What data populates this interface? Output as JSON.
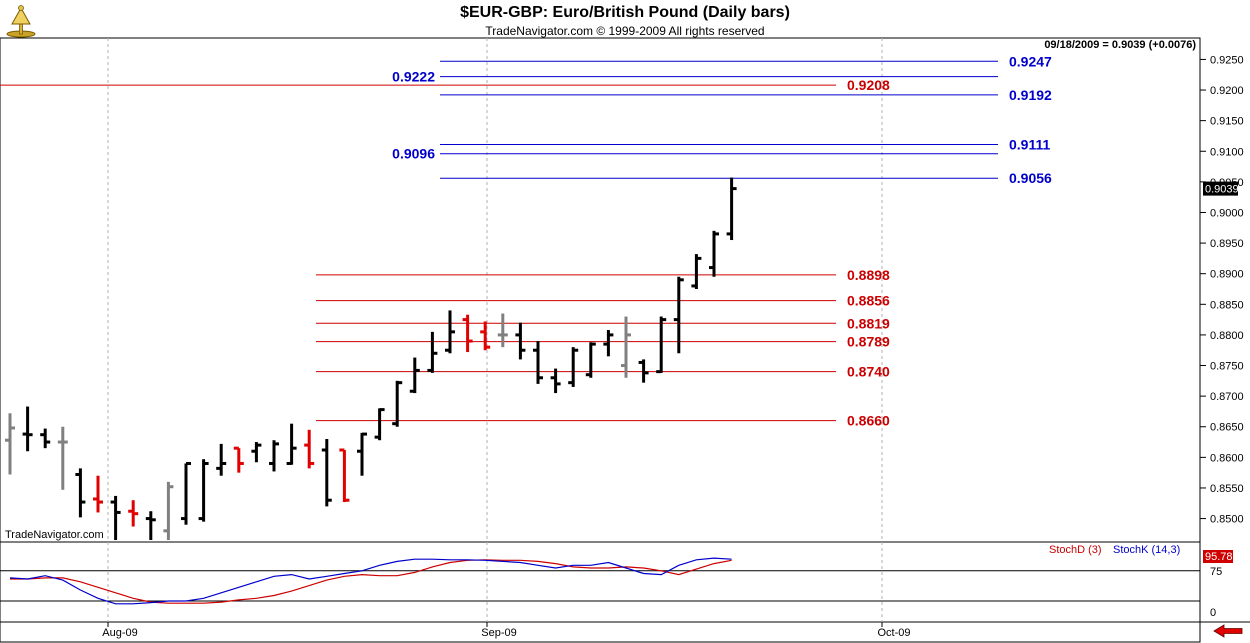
{
  "header": {
    "title": "$EUR-GBP:  Euro/British Pound  (Daily bars)",
    "subtitle": "TradeNavigator.com © 1999-2009 All rights reserved"
  },
  "chart_data": {
    "type": "bar",
    "title": "$EUR-GBP:  Euro/British Pound  (Daily bars)",
    "readout": "09/18/2009 = 0.9039 (+0.0076)",
    "watermark": "TradeNavigator.com",
    "last_price_label": "0.9039",
    "price_axis": {
      "range": [
        0.8465,
        0.9285
      ],
      "ticks": [
        "0.9250",
        "0.9200",
        "0.9150",
        "0.9100",
        "0.9050",
        "0.9000",
        "0.8950",
        "0.8900",
        "0.8850",
        "0.8800",
        "0.8750",
        "0.8700",
        "0.8650",
        "0.8600",
        "0.8550",
        "0.8500"
      ]
    },
    "date_axis": {
      "labels": [
        "Aug-09",
        "Sep-09",
        "Oct-09"
      ]
    },
    "grid": "dashed vertical lines at month starts",
    "colors": {
      "bar_up": "#000000",
      "bar_down": "#e00000",
      "bar_neutral": "#808080",
      "fib_extension": "#0000cc",
      "fib_retracement": "#cc0000",
      "stoch_d": "#cc0000",
      "stoch_k": "#0000cc"
    },
    "ohlc_bars": [
      {
        "c": "n",
        "o": 0.8628,
        "h": 0.8672,
        "l": 0.8572,
        "cl": 0.8648
      },
      {
        "c": "u",
        "o": 0.8638,
        "h": 0.8683,
        "l": 0.861,
        "cl": 0.8637
      },
      {
        "c": "u",
        "o": 0.8637,
        "h": 0.8647,
        "l": 0.8615,
        "cl": 0.8625
      },
      {
        "c": "n",
        "o": 0.8625,
        "h": 0.865,
        "l": 0.8547,
        "cl": 0.8625
      },
      {
        "c": "u",
        "o": 0.8572,
        "h": 0.8582,
        "l": 0.8502,
        "cl": 0.8527
      },
      {
        "c": "d",
        "o": 0.8532,
        "h": 0.857,
        "l": 0.851,
        "cl": 0.8527
      },
      {
        "c": "u",
        "o": 0.8527,
        "h": 0.8537,
        "l": 0.8465,
        "cl": 0.851
      },
      {
        "c": "d",
        "o": 0.8512,
        "h": 0.853,
        "l": 0.8487,
        "cl": 0.8508
      },
      {
        "c": "u",
        "o": 0.85,
        "h": 0.8512,
        "l": 0.8465,
        "cl": 0.8498
      },
      {
        "c": "n",
        "o": 0.848,
        "h": 0.856,
        "l": 0.8465,
        "cl": 0.8552
      },
      {
        "c": "u",
        "o": 0.85,
        "h": 0.859,
        "l": 0.849,
        "cl": 0.859
      },
      {
        "c": "u",
        "o": 0.85,
        "h": 0.8597,
        "l": 0.8495,
        "cl": 0.859
      },
      {
        "c": "u",
        "o": 0.8582,
        "h": 0.8622,
        "l": 0.857,
        "cl": 0.859
      },
      {
        "c": "d",
        "o": 0.8615,
        "h": 0.8615,
        "l": 0.8575,
        "cl": 0.859
      },
      {
        "c": "u",
        "o": 0.861,
        "h": 0.8625,
        "l": 0.8592,
        "cl": 0.862
      },
      {
        "c": "u",
        "o": 0.859,
        "h": 0.8628,
        "l": 0.8577,
        "cl": 0.8622
      },
      {
        "c": "u",
        "o": 0.859,
        "h": 0.8655,
        "l": 0.8588,
        "cl": 0.8615
      },
      {
        "c": "d",
        "o": 0.862,
        "h": 0.8645,
        "l": 0.8582,
        "cl": 0.859
      },
      {
        "c": "u",
        "o": 0.8612,
        "h": 0.863,
        "l": 0.852,
        "cl": 0.853
      },
      {
        "c": "d",
        "o": 0.8612,
        "h": 0.8612,
        "l": 0.8527,
        "cl": 0.853
      },
      {
        "c": "u",
        "o": 0.861,
        "h": 0.864,
        "l": 0.857,
        "cl": 0.8638
      },
      {
        "c": "u",
        "o": 0.8633,
        "h": 0.868,
        "l": 0.8628,
        "cl": 0.8678
      },
      {
        "c": "u",
        "o": 0.8655,
        "h": 0.8725,
        "l": 0.865,
        "cl": 0.8722
      },
      {
        "c": "u",
        "o": 0.8708,
        "h": 0.8763,
        "l": 0.8705,
        "cl": 0.8742
      },
      {
        "c": "u",
        "o": 0.8742,
        "h": 0.8805,
        "l": 0.8738,
        "cl": 0.877
      },
      {
        "c": "u",
        "o": 0.8775,
        "h": 0.884,
        "l": 0.877,
        "cl": 0.8805
      },
      {
        "c": "d",
        "o": 0.8825,
        "h": 0.8833,
        "l": 0.8772,
        "cl": 0.879
      },
      {
        "c": "d",
        "o": 0.8805,
        "h": 0.8822,
        "l": 0.8775,
        "cl": 0.878
      },
      {
        "c": "n",
        "o": 0.88,
        "h": 0.8835,
        "l": 0.878,
        "cl": 0.88
      },
      {
        "c": "u",
        "o": 0.88,
        "h": 0.882,
        "l": 0.876,
        "cl": 0.8775
      },
      {
        "c": "u",
        "o": 0.8775,
        "h": 0.879,
        "l": 0.872,
        "cl": 0.873
      },
      {
        "c": "u",
        "o": 0.873,
        "h": 0.8745,
        "l": 0.8705,
        "cl": 0.872
      },
      {
        "c": "u",
        "o": 0.8722,
        "h": 0.878,
        "l": 0.8715,
        "cl": 0.8775
      },
      {
        "c": "u",
        "o": 0.8735,
        "h": 0.8788,
        "l": 0.873,
        "cl": 0.8785
      },
      {
        "c": "u",
        "o": 0.8785,
        "h": 0.8808,
        "l": 0.8765,
        "cl": 0.88
      },
      {
        "c": "n",
        "o": 0.875,
        "h": 0.883,
        "l": 0.873,
        "cl": 0.88
      },
      {
        "c": "u",
        "o": 0.8755,
        "h": 0.876,
        "l": 0.8722,
        "cl": 0.8738
      },
      {
        "c": "u",
        "o": 0.874,
        "h": 0.883,
        "l": 0.8738,
        "cl": 0.8825
      },
      {
        "c": "u",
        "o": 0.8825,
        "h": 0.8895,
        "l": 0.877,
        "cl": 0.889
      },
      {
        "c": "u",
        "o": 0.888,
        "h": 0.8932,
        "l": 0.8875,
        "cl": 0.8925
      },
      {
        "c": "u",
        "o": 0.891,
        "h": 0.897,
        "l": 0.8895,
        "cl": 0.8965
      },
      {
        "c": "u",
        "o": 0.8965,
        "h": 0.9057,
        "l": 0.8955,
        "cl": 0.9039
      }
    ],
    "fibonacci_extensions": [
      {
        "label": "0.9247",
        "value": 0.9247
      },
      {
        "label": "0.9222",
        "value": 0.9222
      },
      {
        "label": "0.9192",
        "value": 0.9192
      },
      {
        "label": "0.9111",
        "value": 0.9111
      },
      {
        "label": "0.9096",
        "value": 0.9096
      },
      {
        "label": "0.9056",
        "value": 0.9056
      }
    ],
    "fibonacci_retracements": [
      {
        "label": "0.9208",
        "value": 0.9208
      },
      {
        "label": "0.8898",
        "value": 0.8898
      },
      {
        "label": "0.8856",
        "value": 0.8856
      },
      {
        "label": "0.8819",
        "value": 0.8819
      },
      {
        "label": "0.8789",
        "value": 0.8789
      },
      {
        "label": "0.8740",
        "value": 0.874
      },
      {
        "label": "0.8660",
        "value": 0.866
      }
    ],
    "stochastic": {
      "legend": [
        {
          "name": "StochD (3)",
          "color": "#cc0000"
        },
        {
          "name": "StochK (14,3)",
          "color": "#0000cc"
        }
      ],
      "range": [
        0,
        100
      ],
      "ticks": [
        "75",
        "0"
      ],
      "last_value": "95.78",
      "stoch_d": [
        60,
        60,
        62,
        62,
        55,
        45,
        35,
        25,
        18,
        16,
        16,
        16,
        18,
        22,
        25,
        30,
        38,
        48,
        58,
        65,
        68,
        66,
        66,
        72,
        82,
        90,
        94,
        95,
        94,
        94,
        92,
        88,
        82,
        80,
        80,
        82,
        80,
        75,
        68,
        78,
        88,
        94
      ],
      "stoch_k": [
        62,
        60,
        66,
        58,
        40,
        25,
        15,
        15,
        17,
        20,
        20,
        25,
        35,
        45,
        55,
        65,
        68,
        60,
        65,
        70,
        75,
        85,
        92,
        96,
        96,
        95,
        95,
        94,
        92,
        90,
        85,
        80,
        85,
        85,
        90,
        80,
        70,
        68,
        85,
        95,
        98,
        96
      ]
    }
  }
}
